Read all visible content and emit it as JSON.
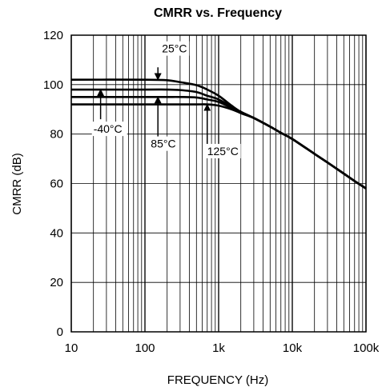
{
  "chart_data": {
    "type": "line",
    "title": "CMRR vs. Frequency",
    "xlabel": "FREQUENCY (Hz)",
    "ylabel": "CMRR (dB)",
    "x_scale": "log",
    "xlim": [
      10,
      100000
    ],
    "ylim": [
      0,
      120
    ],
    "x_ticks": [
      {
        "value": 10,
        "label": "10"
      },
      {
        "value": 100,
        "label": "100"
      },
      {
        "value": 1000,
        "label": "1k"
      },
      {
        "value": 10000,
        "label": "10k"
      },
      {
        "value": 100000,
        "label": "100k"
      }
    ],
    "y_ticks": [
      {
        "value": 0,
        "label": "0"
      },
      {
        "value": 20,
        "label": "20"
      },
      {
        "value": 40,
        "label": "40"
      },
      {
        "value": 60,
        "label": "60"
      },
      {
        "value": 80,
        "label": "80"
      },
      {
        "value": 100,
        "label": "100"
      },
      {
        "value": 120,
        "label": "120"
      }
    ],
    "grid": true,
    "line_color": "#000000",
    "series": [
      {
        "name": "25°C",
        "x": [
          10,
          100,
          200,
          300,
          500,
          700,
          1000,
          1500,
          2000,
          3000,
          5000,
          7000,
          10000,
          20000,
          30000,
          50000,
          70000,
          100000
        ],
        "y": [
          102,
          102,
          101.8,
          101,
          99.8,
          98,
          95.5,
          91.5,
          89,
          86.5,
          83,
          80.5,
          78,
          72,
          68.5,
          64,
          61,
          58
        ]
      },
      {
        "name": "-40°C",
        "x": [
          10,
          100,
          200,
          300,
          500,
          700,
          1000,
          1500,
          2000,
          3000,
          5000,
          7000,
          10000,
          20000,
          30000,
          50000,
          70000,
          100000
        ],
        "y": [
          98,
          98,
          98,
          97.8,
          97,
          95.5,
          94,
          91,
          89,
          86.5,
          83,
          80.5,
          78,
          72,
          68.5,
          64,
          61,
          58
        ]
      },
      {
        "name": "85°C",
        "x": [
          10,
          100,
          200,
          300,
          500,
          700,
          1000,
          1500,
          2000,
          3000,
          5000,
          7000,
          10000,
          20000,
          30000,
          50000,
          70000,
          100000
        ],
        "y": [
          95,
          95,
          95,
          95,
          94.8,
          94,
          93,
          90.5,
          88.5,
          86.5,
          83,
          80.5,
          78,
          72,
          68.5,
          64,
          61,
          58
        ]
      },
      {
        "name": "125°C",
        "x": [
          10,
          100,
          200,
          300,
          500,
          700,
          1000,
          1500,
          2000,
          3000,
          5000,
          7000,
          10000,
          20000,
          30000,
          50000,
          70000,
          100000
        ],
        "y": [
          92,
          92,
          92,
          92,
          92,
          92,
          91.5,
          90,
          88.5,
          86.5,
          83,
          80.5,
          78,
          72,
          68.5,
          64,
          61,
          58
        ]
      }
    ],
    "annotations": [
      {
        "text": "25°C",
        "x": 170,
        "y": 113,
        "arrow_from": [
          150,
          107
        ],
        "arrow_to": [
          150,
          102
        ]
      },
      {
        "text": "-40°C",
        "x": 20,
        "y": 80.5,
        "arrow_from": [
          25,
          86
        ],
        "arrow_to": [
          25,
          98
        ]
      },
      {
        "text": "85°C",
        "x": 120,
        "y": 74.5,
        "arrow_from": [
          150,
          79
        ],
        "arrow_to": [
          150,
          95
        ]
      },
      {
        "text": "125°C",
        "x": 700,
        "y": 71.5,
        "arrow_from": [
          700,
          76
        ],
        "arrow_to": [
          700,
          92
        ]
      }
    ]
  }
}
